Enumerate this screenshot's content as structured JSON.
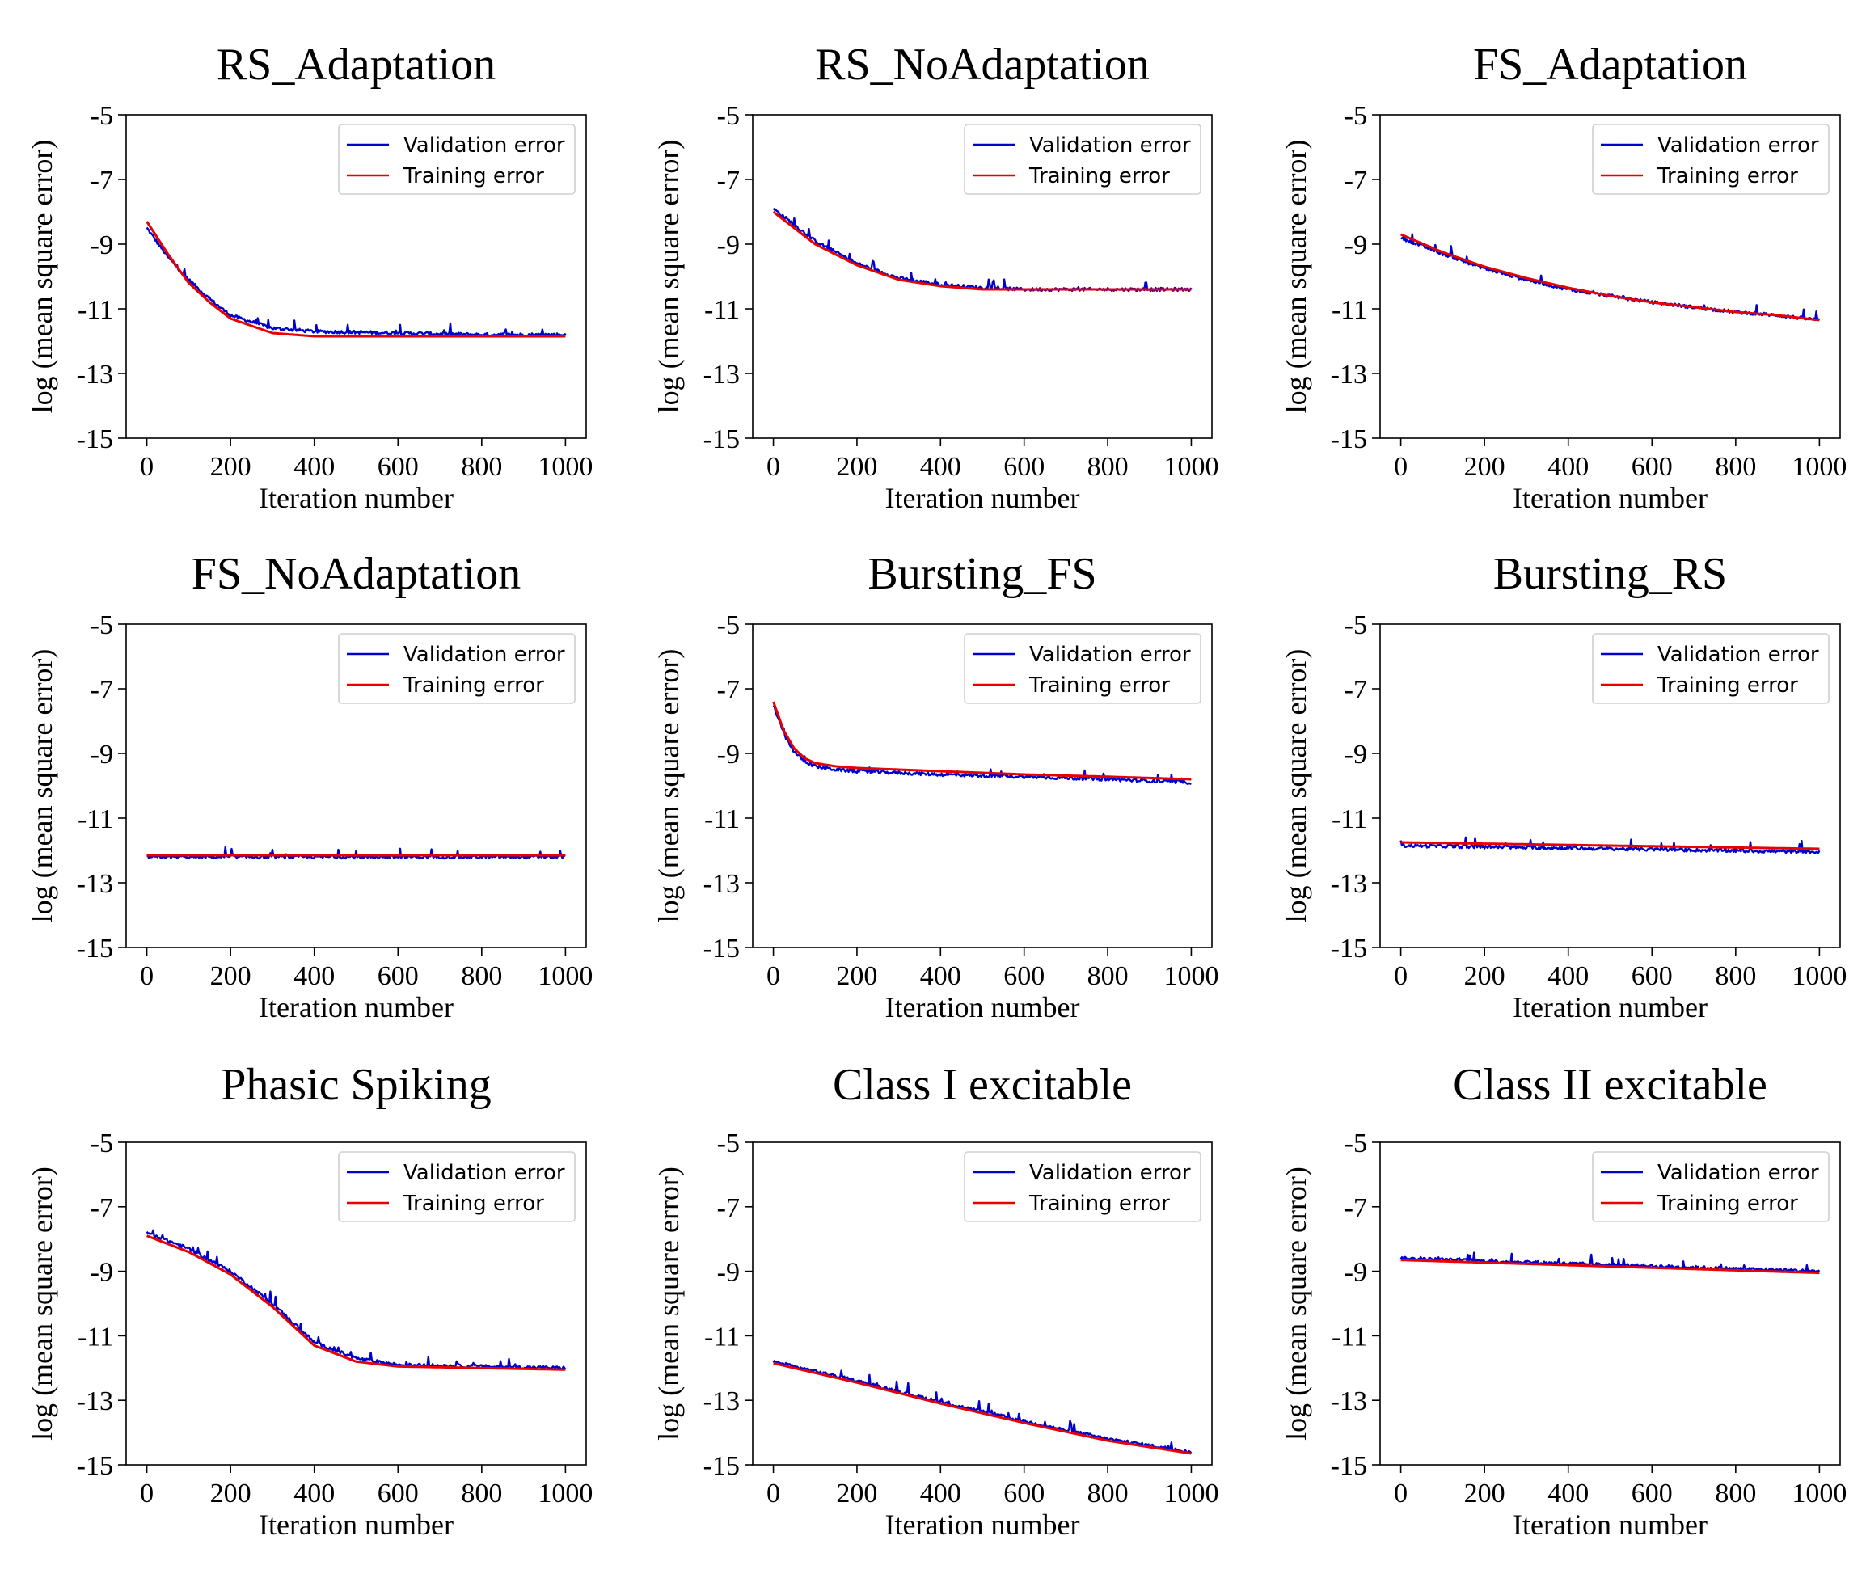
{
  "colors": {
    "validation": "#0000cc",
    "training": "#e60000"
  },
  "chart_data": [
    {
      "type": "line",
      "title": "RS_Adaptation",
      "xlabel": "Iteration number",
      "ylabel": "log (mean square error)",
      "xlim": [
        0,
        1000
      ],
      "ylim": [
        -15,
        -5
      ],
      "xticks": [
        "0",
        "200",
        "400",
        "600",
        "800",
        "1000"
      ],
      "yticks": [
        "-5",
        "-7",
        "-9",
        "-11",
        "-13",
        "-15"
      ],
      "legend": "top-right",
      "grid": false,
      "series": [
        {
          "name": "Validation error",
          "x": [
            0,
            50,
            100,
            150,
            200,
            300,
            400,
            600,
            800,
            1000
          ],
          "y": [
            -8.5,
            -9.4,
            -10.1,
            -10.7,
            -11.2,
            -11.6,
            -11.7,
            -11.75,
            -11.8,
            -11.8
          ]
        },
        {
          "name": "Training error",
          "x": [
            0,
            50,
            100,
            150,
            200,
            300,
            400,
            600,
            800,
            1000
          ],
          "y": [
            -8.3,
            -9.3,
            -10.2,
            -10.8,
            -11.3,
            -11.75,
            -11.85,
            -11.85,
            -11.85,
            -11.85
          ]
        }
      ]
    },
    {
      "type": "line",
      "title": "RS_NoAdaptation",
      "xlabel": "Iteration number",
      "ylabel": "log (mean square error)",
      "xlim": [
        0,
        1000
      ],
      "ylim": [
        -15,
        -5
      ],
      "xticks": [
        "0",
        "200",
        "400",
        "600",
        "800",
        "1000"
      ],
      "yticks": [
        "-5",
        "-7",
        "-9",
        "-11",
        "-13",
        "-15"
      ],
      "legend": "top-right",
      "grid": false,
      "series": [
        {
          "name": "Validation error",
          "x": [
            0,
            100,
            200,
            300,
            400,
            500,
            600,
            800,
            1000
          ],
          "y": [
            -7.9,
            -8.9,
            -9.6,
            -10.05,
            -10.25,
            -10.35,
            -10.4,
            -10.4,
            -10.4
          ]
        },
        {
          "name": "Training error",
          "x": [
            0,
            100,
            200,
            300,
            400,
            500,
            600,
            800,
            1000
          ],
          "y": [
            -8.0,
            -9.0,
            -9.65,
            -10.1,
            -10.3,
            -10.4,
            -10.4,
            -10.4,
            -10.4
          ]
        }
      ]
    },
    {
      "type": "line",
      "title": "FS_Adaptation",
      "xlabel": "Iteration number",
      "ylabel": "log (mean square error)",
      "xlim": [
        0,
        1000
      ],
      "ylim": [
        -15,
        -5
      ],
      "xticks": [
        "0",
        "200",
        "400",
        "600",
        "800",
        "1000"
      ],
      "yticks": [
        "-5",
        "-7",
        "-9",
        "-11",
        "-13",
        "-15"
      ],
      "legend": "top-right",
      "grid": false,
      "series": [
        {
          "name": "Validation error",
          "x": [
            0,
            100,
            200,
            300,
            400,
            500,
            600,
            700,
            800,
            900,
            1000
          ],
          "y": [
            -8.8,
            -9.3,
            -9.75,
            -10.1,
            -10.4,
            -10.6,
            -10.8,
            -10.95,
            -11.1,
            -11.2,
            -11.35
          ]
        },
        {
          "name": "Training error",
          "x": [
            0,
            100,
            200,
            300,
            400,
            500,
            600,
            700,
            800,
            900,
            1000
          ],
          "y": [
            -8.7,
            -9.25,
            -9.7,
            -10.05,
            -10.35,
            -10.6,
            -10.8,
            -10.95,
            -11.1,
            -11.2,
            -11.35
          ]
        }
      ]
    },
    {
      "type": "line",
      "title": "FS_NoAdaptation",
      "xlabel": "Iteration number",
      "ylabel": "log (mean square error)",
      "xlim": [
        0,
        1000
      ],
      "ylim": [
        -15,
        -5
      ],
      "xticks": [
        "0",
        "200",
        "400",
        "600",
        "800",
        "1000"
      ],
      "yticks": [
        "-5",
        "-7",
        "-9",
        "-11",
        "-13",
        "-15"
      ],
      "legend": "top-right",
      "grid": false,
      "series": [
        {
          "name": "Validation error",
          "x": [
            0,
            500,
            1000
          ],
          "y": [
            -12.2,
            -12.2,
            -12.2
          ]
        },
        {
          "name": "Training error",
          "x": [
            0,
            500,
            1000
          ],
          "y": [
            -12.15,
            -12.15,
            -12.15
          ]
        }
      ]
    },
    {
      "type": "line",
      "title": "Bursting_FS",
      "xlabel": "Iteration number",
      "ylabel": "log (mean square error)",
      "xlim": [
        0,
        1000
      ],
      "ylim": [
        -15,
        -5
      ],
      "xticks": [
        "0",
        "200",
        "400",
        "600",
        "800",
        "1000"
      ],
      "yticks": [
        "-5",
        "-7",
        "-9",
        "-11",
        "-13",
        "-15"
      ],
      "legend": "top-right",
      "grid": false,
      "series": [
        {
          "name": "Validation error",
          "x": [
            0,
            25,
            50,
            75,
            100,
            150,
            200,
            400,
            600,
            800,
            1000
          ],
          "y": [
            -7.5,
            -8.4,
            -8.95,
            -9.25,
            -9.4,
            -9.5,
            -9.55,
            -9.65,
            -9.72,
            -9.8,
            -9.9
          ]
        },
        {
          "name": "Training error",
          "x": [
            0,
            25,
            50,
            75,
            100,
            150,
            200,
            400,
            600,
            800,
            1000
          ],
          "y": [
            -7.4,
            -8.3,
            -8.85,
            -9.15,
            -9.3,
            -9.4,
            -9.45,
            -9.55,
            -9.65,
            -9.72,
            -9.8
          ]
        }
      ]
    },
    {
      "type": "line",
      "title": "Bursting_RS",
      "xlabel": "Iteration number",
      "ylabel": "log (mean square error)",
      "xlim": [
        0,
        1000
      ],
      "ylim": [
        -15,
        -5
      ],
      "xticks": [
        "0",
        "200",
        "400",
        "600",
        "800",
        "1000"
      ],
      "yticks": [
        "-5",
        "-7",
        "-9",
        "-11",
        "-13",
        "-15"
      ],
      "legend": "top-right",
      "grid": false,
      "series": [
        {
          "name": "Validation error",
          "x": [
            0,
            500,
            1000
          ],
          "y": [
            -11.85,
            -11.95,
            -12.05
          ]
        },
        {
          "name": "Training error",
          "x": [
            0,
            500,
            1000
          ],
          "y": [
            -11.75,
            -11.85,
            -11.95
          ]
        }
      ]
    },
    {
      "type": "line",
      "title": "Phasic Spiking",
      "xlabel": "Iteration number",
      "ylabel": "log (mean square error)",
      "xlim": [
        0,
        1000
      ],
      "ylim": [
        -15,
        -5
      ],
      "xticks": [
        "0",
        "200",
        "400",
        "600",
        "800",
        "1000"
      ],
      "yticks": [
        "-5",
        "-7",
        "-9",
        "-11",
        "-13",
        "-15"
      ],
      "legend": "top-right",
      "grid": false,
      "series": [
        {
          "name": "Validation error",
          "x": [
            0,
            100,
            200,
            300,
            400,
            500,
            600,
            800,
            1000
          ],
          "y": [
            -7.8,
            -8.3,
            -9.0,
            -10.0,
            -11.2,
            -11.7,
            -11.9,
            -11.95,
            -12.0
          ]
        },
        {
          "name": "Training error",
          "x": [
            0,
            100,
            200,
            300,
            400,
            500,
            600,
            800,
            1000
          ],
          "y": [
            -7.9,
            -8.4,
            -9.1,
            -10.1,
            -11.3,
            -11.8,
            -11.95,
            -12.0,
            -12.05
          ]
        }
      ]
    },
    {
      "type": "line",
      "title": "Class I excitable",
      "xlabel": "Iteration number",
      "ylabel": "log (mean square error)",
      "xlim": [
        0,
        1000
      ],
      "ylim": [
        -15,
        -5
      ],
      "xticks": [
        "0",
        "200",
        "400",
        "600",
        "800",
        "1000"
      ],
      "yticks": [
        "-5",
        "-7",
        "-9",
        "-11",
        "-13",
        "-15"
      ],
      "legend": "top-right",
      "grid": false,
      "series": [
        {
          "name": "Validation error",
          "x": [
            0,
            200,
            400,
            600,
            800,
            1000
          ],
          "y": [
            -11.8,
            -12.4,
            -13.05,
            -13.65,
            -14.2,
            -14.6
          ]
        },
        {
          "name": "Training error",
          "x": [
            0,
            200,
            400,
            600,
            800,
            1000
          ],
          "y": [
            -11.85,
            -12.45,
            -13.1,
            -13.7,
            -14.25,
            -14.65
          ]
        }
      ]
    },
    {
      "type": "line",
      "title": "Class II excitable",
      "xlabel": "Iteration number",
      "ylabel": "log (mean square error)",
      "xlim": [
        0,
        1000
      ],
      "ylim": [
        -15,
        -5
      ],
      "xticks": [
        "0",
        "200",
        "400",
        "600",
        "800",
        "1000"
      ],
      "yticks": [
        "-5",
        "-7",
        "-9",
        "-11",
        "-13",
        "-15"
      ],
      "legend": "top-right",
      "grid": false,
      "series": [
        {
          "name": "Validation error",
          "x": [
            0,
            500,
            1000
          ],
          "y": [
            -8.6,
            -8.8,
            -9.0
          ]
        },
        {
          "name": "Training error",
          "x": [
            0,
            500,
            1000
          ],
          "y": [
            -8.65,
            -8.85,
            -9.05
          ]
        }
      ]
    }
  ]
}
